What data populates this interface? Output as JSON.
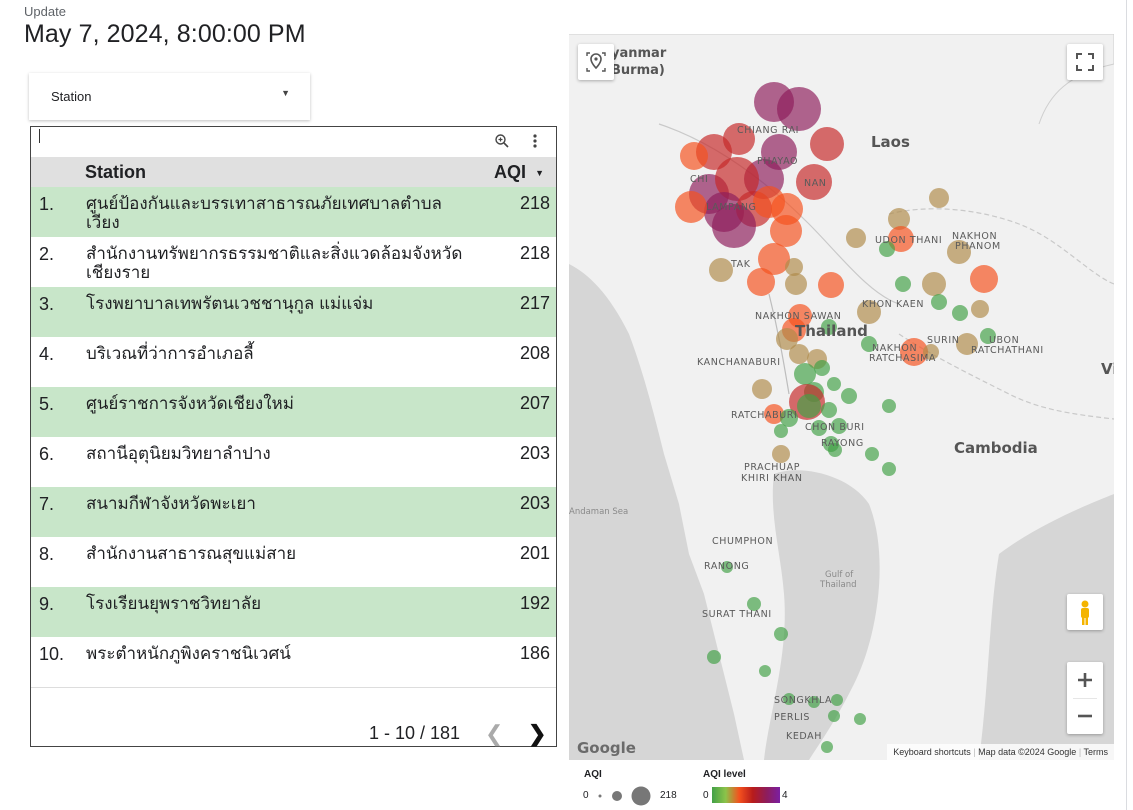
{
  "header": {
    "update_label": "Update",
    "update_time": "May 7, 2024, 8:00:00 PM"
  },
  "filter": {
    "label": "Station"
  },
  "table": {
    "columns": {
      "station": "Station",
      "aqi": "AQI"
    },
    "rows": [
      {
        "rank": "1.",
        "station": "ศูนย์ป้องกันและบรรเทาสาธารณภัยเทศบาลตำบลเวียง",
        "aqi": "218"
      },
      {
        "rank": "2.",
        "station": "สำนักงานทรัพยากรธรรมชาติและสิ่งแวดล้อมจังหวัดเชียงราย",
        "aqi": "218"
      },
      {
        "rank": "3.",
        "station": "โรงพยาบาลเทพรัตนเวชชานุกูล แม่แจ่ม",
        "aqi": "217"
      },
      {
        "rank": "4.",
        "station": "บริเวณที่ว่าการอำเภอลี้",
        "aqi": "208"
      },
      {
        "rank": "5.",
        "station": "ศูนย์ราชการจังหวัดเชียงใหม่",
        "aqi": "207"
      },
      {
        "rank": "6.",
        "station": "สถานีอุตุนิยมวิทยาลำปาง",
        "aqi": "203"
      },
      {
        "rank": "7.",
        "station": "สนามกีฬาจังหวัดพะเยา",
        "aqi": "203"
      },
      {
        "rank": "8.",
        "station": "สำนักงานสาธารณสุขแม่สาย",
        "aqi": "201"
      },
      {
        "rank": "9.",
        "station": "โรงเรียนยุพราชวิทยาลัย",
        "aqi": "192"
      },
      {
        "rank": "10.",
        "station": "พระตำหนักภูพิงคราชนิเวศน์",
        "aqi": "186"
      }
    ],
    "pagination": "1 - 10 / 181"
  },
  "map": {
    "labels": {
      "myanmar": "yanmar",
      "burma": "Burma)",
      "laos": "Laos",
      "thailand": "Thailand",
      "cambodia": "Cambodia",
      "chiang_rai": "CHIANG RAI",
      "phayao": "PHAYAO",
      "nan": "NAN",
      "chi": "CHI",
      "lampang": "LAMPANG",
      "tak": "TAK",
      "udon_thani": "UDON THANI",
      "nakhon": "NAKHON",
      "phanom": "PHANOM",
      "khon_kaen": "KHON KAEN",
      "nakhon_sawan": "NAKHON SAWAN",
      "kanchanaburi": "KANCHANABURI",
      "nakhon2": "NAKHON",
      "ratchasima": "RATCHASIMA",
      "surin": "SURIN",
      "ubon": "UBON",
      "ratchathani": "RATCHATHANI",
      "vi": "Vi",
      "ratchaburi": "RATCHABURI",
      "chon_buri": "CHON BURI",
      "rayong": "RAYONG",
      "prachuap": "PRACHUAP",
      "khiri_khan": "KHIRI KHAN",
      "andaman": "Andaman Sea",
      "chumphon": "CHUMPHON",
      "ranong": "RANONG",
      "gulf": "Gulf of",
      "gulf2": "Thailand",
      "surat_thani": "SURAT THANI",
      "songkhla": "SONGKHLA",
      "perlis": "PERLIS",
      "kedah": "KEDAH"
    },
    "attribution": {
      "logo": "Google",
      "shortcuts": "Keyboard shortcuts",
      "mapdata": "Map data ©2024 Google",
      "terms": "Terms"
    }
  },
  "legend": {
    "aqi_title": "AQI",
    "aqi_min": "0",
    "aqi_max": "218",
    "level_title": "AQI level",
    "level_min": "0",
    "level_max": "4"
  },
  "colors": {
    "row_highlight": "#c8e6c9",
    "level_0": "#43a047",
    "level_1": "#b08a4a",
    "level_2": "#f4511e",
    "level_3": "#c62828",
    "level_4": "#8e1d5b"
  },
  "icons": [
    "zoom-in-icon",
    "more-vert-icon",
    "locate-icon",
    "fullscreen-icon",
    "pegman-icon",
    "plus-icon",
    "minus-icon",
    "chevron-left-icon",
    "chevron-right-icon"
  ]
}
